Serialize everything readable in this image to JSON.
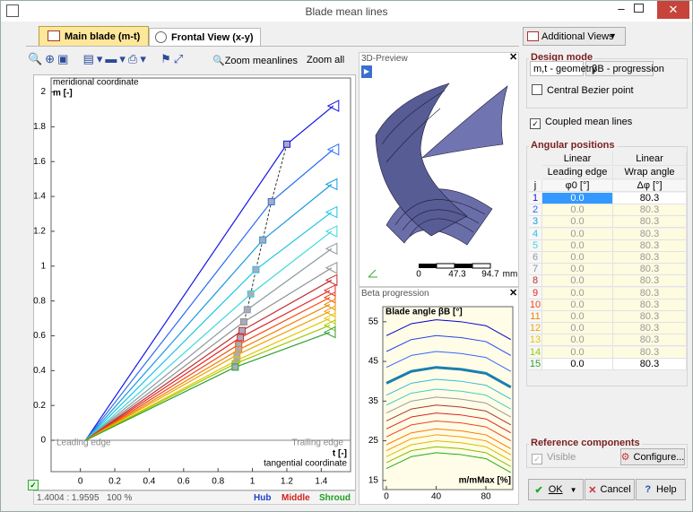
{
  "window": {
    "title": "Blade mean lines"
  },
  "tabs": [
    "Main blade (m-t)",
    "Frontal View (x-y)"
  ],
  "toolbar": {
    "zoom_meanlines": "Zoom meanlines",
    "zoom_all": "Zoom all"
  },
  "main_plot": {
    "y_title": "meridional coordinate",
    "y_label": "m [-]",
    "x_label": "t [-]",
    "x_title": "tangential coordinate",
    "leading_edge": "Leading edge",
    "trailing_edge": "Trailing edge",
    "xlim": [
      -0.17,
      1.57
    ],
    "ylim": [
      -0.18,
      2.08
    ],
    "xticks": [
      0,
      0.2,
      0.4,
      0.6,
      0.8,
      1,
      1.2,
      1.4
    ],
    "yticks": [
      0,
      0.2,
      0.4,
      0.6,
      0.8,
      1,
      1.2,
      1.4,
      1.6,
      1.8,
      2
    ],
    "lines": [
      {
        "color": "#1515e6",
        "t": [
          0.03,
          1.2,
          1.47
        ],
        "m": [
          0,
          1.7,
          1.92
        ]
      },
      {
        "color": "#2a6cf0",
        "t": [
          0.03,
          1.11,
          1.47
        ],
        "m": [
          0,
          1.37,
          1.67
        ]
      },
      {
        "color": "#1a9ae0",
        "t": [
          0.03,
          1.06,
          1.46
        ],
        "m": [
          0,
          1.15,
          1.47
        ]
      },
      {
        "color": "#1fc4e6",
        "t": [
          0.03,
          1.02,
          1.46
        ],
        "m": [
          0,
          0.98,
          1.31
        ]
      },
      {
        "color": "#40d8d8",
        "t": [
          0.03,
          0.99,
          1.46
        ],
        "m": [
          0,
          0.84,
          1.2
        ]
      },
      {
        "color": "#8a9aa0",
        "t": [
          0.03,
          0.97,
          1.46
        ],
        "m": [
          0,
          0.75,
          1.1
        ]
      },
      {
        "color": "#909090",
        "t": [
          0.03,
          0.95,
          1.46
        ],
        "m": [
          0,
          0.68,
          0.99
        ]
      },
      {
        "color": "#c03030",
        "t": [
          0.03,
          0.94,
          1.46
        ],
        "m": [
          0,
          0.63,
          0.92
        ]
      },
      {
        "color": "#e02828",
        "t": [
          0.03,
          0.93,
          1.45
        ],
        "m": [
          0,
          0.59,
          0.86
        ]
      },
      {
        "color": "#f04a10",
        "t": [
          0.03,
          0.92,
          1.45
        ],
        "m": [
          0,
          0.55,
          0.82
        ]
      },
      {
        "color": "#f08000",
        "t": [
          0.03,
          0.92,
          1.45
        ],
        "m": [
          0,
          0.52,
          0.78
        ]
      },
      {
        "color": "#f0a000",
        "t": [
          0.03,
          0.91,
          1.45
        ],
        "m": [
          0,
          0.49,
          0.74
        ]
      },
      {
        "color": "#e0c800",
        "t": [
          0.03,
          0.91,
          1.45
        ],
        "m": [
          0,
          0.46,
          0.7
        ]
      },
      {
        "color": "#a0c800",
        "t": [
          0.03,
          0.9,
          1.45
        ],
        "m": [
          0,
          0.44,
          0.66
        ]
      },
      {
        "color": "#30a030",
        "t": [
          0.03,
          0.9,
          1.45
        ],
        "m": [
          0,
          0.42,
          0.62
        ]
      }
    ]
  },
  "status": {
    "coords": "1.4004 : 1.9595",
    "zoom": "100 %",
    "hub": "Hub",
    "middle": "Middle",
    "shroud": "Shroud"
  },
  "preview": {
    "title": "3D-Preview",
    "scale": [
      0,
      47.3,
      94.7
    ],
    "unit": "mm"
  },
  "beta": {
    "title": "Beta progression",
    "y_label": "Blade angle βB [°]",
    "x_label": "m/mMax [%]",
    "xlim": [
      -2.9,
      101.6
    ],
    "ylim": [
      12.7,
      58.8
    ],
    "xticks": [
      0,
      40,
      80
    ],
    "yticks": [
      15,
      25,
      35,
      45,
      55
    ],
    "x": [
      0,
      20,
      40,
      60,
      80,
      100
    ],
    "curves": [
      {
        "color": "#0000cc",
        "values": [
          51.5,
          54.5,
          55.5,
          55,
          54,
          50.5
        ]
      },
      {
        "color": "#2244ee",
        "values": [
          47.5,
          50.5,
          51.5,
          51,
          50,
          46.5
        ]
      },
      {
        "color": "#3366ff",
        "values": [
          43.5,
          46.5,
          47.5,
          47,
          46,
          42.5
        ]
      },
      {
        "color": "#1a7fb0",
        "width": 3,
        "values": [
          39.5,
          42.5,
          43.5,
          43,
          42,
          38.5
        ]
      },
      {
        "color": "#33bbdd",
        "values": [
          36.5,
          39.5,
          40.5,
          40,
          39,
          35.5
        ]
      },
      {
        "color": "#44cccc",
        "values": [
          34,
          37,
          38,
          37.5,
          36.5,
          33
        ]
      },
      {
        "color": "#999999",
        "values": [
          32,
          35,
          36,
          35.5,
          34.5,
          31
        ]
      },
      {
        "color": "#aa3333",
        "values": [
          30,
          33,
          34,
          33.5,
          32.5,
          29
        ]
      },
      {
        "color": "#dd2222",
        "values": [
          28,
          31,
          32,
          31.5,
          30.5,
          27
        ]
      },
      {
        "color": "#ee4422",
        "values": [
          26,
          29,
          30,
          29.5,
          28.5,
          25
        ]
      },
      {
        "color": "#ff7700",
        "values": [
          24,
          27,
          28,
          27.5,
          26.5,
          23
        ]
      },
      {
        "color": "#ff9900",
        "values": [
          22.5,
          25.5,
          26.5,
          26,
          25,
          21.5
        ]
      },
      {
        "color": "#ddbb00",
        "values": [
          21,
          24,
          25,
          24.5,
          23.5,
          20
        ]
      },
      {
        "color": "#88bb00",
        "values": [
          19.5,
          22.5,
          23.5,
          23,
          22,
          18.5
        ]
      },
      {
        "color": "#22aa22",
        "values": [
          18,
          21,
          22,
          21.5,
          20.5,
          17
        ]
      }
    ]
  },
  "right": {
    "additional_views": "Additional Views",
    "design_mode": "Design mode",
    "mode_tabs": [
      "m,t - geometry",
      "βB - progression"
    ],
    "central_bezier": "Central Bezier point",
    "coupled": "Coupled mean lines",
    "angular": {
      "title": "Angular positions",
      "mode": [
        "Linear",
        "Linear"
      ],
      "columns": [
        "Leading edge",
        "Wrap angle"
      ],
      "units": [
        "j",
        "φ0 [°]",
        "Δφ [°]"
      ],
      "rows": [
        [
          1,
          "0.0",
          "80.3"
        ],
        [
          2,
          "0.0",
          "80.3"
        ],
        [
          3,
          "0.0",
          "80.3"
        ],
        [
          4,
          "0.0",
          "80.3"
        ],
        [
          5,
          "0.0",
          "80.3"
        ],
        [
          6,
          "0.0",
          "80.3"
        ],
        [
          7,
          "0.0",
          "80.3"
        ],
        [
          8,
          "0.0",
          "80.3"
        ],
        [
          9,
          "0.0",
          "80.3"
        ],
        [
          10,
          "0.0",
          "80.3"
        ],
        [
          11,
          "0.0",
          "80.3"
        ],
        [
          12,
          "0.0",
          "80.3"
        ],
        [
          13,
          "0.0",
          "80.3"
        ],
        [
          14,
          "0.0",
          "80.3"
        ],
        [
          15,
          "0.0",
          "80.3"
        ]
      ]
    },
    "reference": "Reference components",
    "visible": "Visible",
    "configure": "Configure...",
    "ok": "OK",
    "cancel": "Cancel",
    "help": "Help"
  }
}
